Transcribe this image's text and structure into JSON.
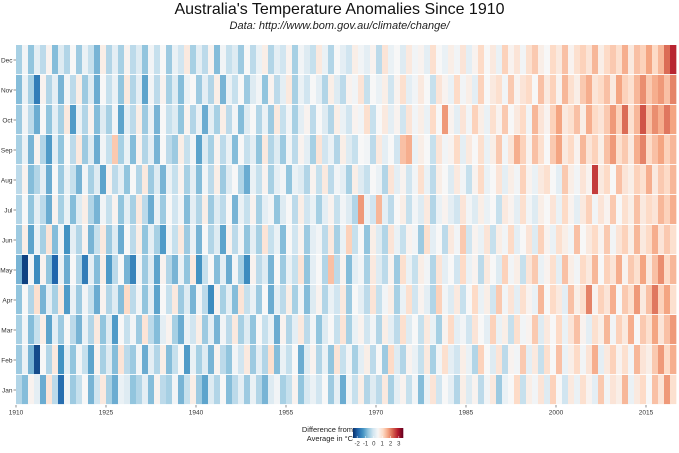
{
  "chart_data": {
    "type": "heatmap",
    "title": "Australia's Temperature Anomalies Since 1910",
    "subtitle": "Data: http://www.bom.gov.au/climate/change/",
    "xlabel": "",
    "ylabel": "",
    "x_ticks": [
      "1910",
      "1925",
      "1940",
      "1955",
      "1970",
      "1985",
      "2000",
      "2015"
    ],
    "y_categories": [
      "Jan",
      "Feb",
      "Mar",
      "Apr",
      "May",
      "Jun",
      "Jul",
      "Aug",
      "Sep",
      "Oct",
      "Nov",
      "Dec"
    ],
    "x_range": [
      1910,
      2020
    ],
    "legend": {
      "title": "Difference from Average in °C",
      "ticks": [
        "-2",
        "-1",
        "0",
        "1",
        "2",
        "3"
      ],
      "range": [
        -2.5,
        3.5
      ],
      "placement": "bottom"
    },
    "color_scale": [
      "#08306b",
      "#2166ac",
      "#4393c3",
      "#92c5de",
      "#d1e5f0",
      "#f7f7f7",
      "#fddbc7",
      "#f4a582",
      "#d6604d",
      "#b2182b",
      "#67001f"
    ],
    "grid": false,
    "values": {
      "Jan": [
        -0.4,
        -0.8,
        0.6,
        0.2,
        -1.0,
        0.9,
        -0.3,
        -1.8,
        0.4,
        -0.6,
        -0.2,
        0.5,
        -0.9,
        -0.1,
        0.8,
        -0.5,
        -1.0,
        0.3,
        0.1,
        -0.7,
        -0.4,
        0.2,
        -0.8,
        0.6,
        -0.3,
        -0.5,
        0.4,
        -0.9,
        -0.2,
        0.7,
        -0.6,
        -1.1,
        0.1,
        -0.4,
        0.5,
        -0.8,
        -0.3,
        0.2,
        -0.6,
        0.3,
        -0.4,
        -0.9,
        0.1,
        0.4,
        -0.5,
        -0.2,
        0.6,
        -0.7,
        0.0,
        0.3,
        -0.1,
        0.5,
        -0.6,
        0.2,
        -1.0,
        0.4,
        -0.2,
        0.7,
        -0.4,
        0.1,
        -0.3,
        0.8,
        -0.5,
        0.2,
        0.6,
        -0.2,
        0.4,
        -0.8,
        0.3,
        0.9,
        -0.1,
        0.5,
        0.2,
        -0.4,
        0.7,
        0.1,
        0.6,
        -0.3,
        0.4,
        0.8,
        -0.6,
        0.3,
        0.5,
        1.1,
        -0.2,
        0.7,
        0.4,
        0.9,
        0.1,
        1.2,
        0.5,
        -0.1,
        0.8,
        0.3,
        1.0,
        0.6,
        0.2,
        1.3,
        0.4,
        0.9,
        0.7,
        1.5,
        0.3,
        0.8,
        1.1,
        0.5,
        1.4,
        0.9,
        1.8,
        1.0
      ],
      "Feb": [
        -0.6,
        0.3,
        -0.9,
        -2.2,
        0.5,
        -0.4,
        0.8,
        -1.3,
        0.2,
        -0.7,
        0.4,
        -0.2,
        -1.1,
        0.6,
        -0.5,
        0.1,
        -0.8,
        0.9,
        -0.3,
        -0.6,
        0.4,
        -1.0,
        0.2,
        -0.4,
        0.7,
        -0.8,
        -0.2,
        0.5,
        -1.2,
        0.3,
        -0.5,
        0.1,
        -0.9,
        0.6,
        -0.3,
        -0.7,
        0.4,
        -0.1,
        0.8,
        -0.6,
        0.2,
        -0.4,
        1.0,
        -0.8,
        0.3,
        -0.2,
        0.5,
        -1.0,
        0.1,
        0.6,
        -0.4,
        0.3,
        -0.7,
        0.9,
        -0.2,
        0.4,
        -0.5,
        0.2,
        0.7,
        -0.3,
        0.5,
        -0.6,
        1.1,
        0.1,
        -0.4,
        0.6,
        0.3,
        -0.2,
        0.8,
        -0.5,
        0.4,
        1.0,
        0.2,
        -0.1,
        0.7,
        0.3,
        -0.4,
        1.2,
        0.5,
        0.1,
        0.9,
        -0.3,
        0.6,
        0.4,
        1.3,
        0.2,
        0.8,
        -0.2,
        1.0,
        0.5,
        1.4,
        0.3,
        0.7,
        1.1,
        0.4,
        0.9,
        1.6,
        0.2,
        0.8,
        1.2,
        0.6,
        1.0,
        0.4,
        1.5,
        0.9,
        0.7,
        1.3,
        1.8,
        1.1,
        1.6
      ],
      "Mar": [
        -0.5,
        0.4,
        -0.8,
        -0.2,
        0.7,
        -1.1,
        0.2,
        -0.6,
        0.5,
        -0.3,
        -0.9,
        0.3,
        -0.4,
        0.8,
        -0.7,
        0.1,
        -1.2,
        0.5,
        -0.2,
        0.4,
        -0.6,
        0.9,
        -0.3,
        -0.8,
        0.2,
        0.6,
        -0.5,
        -1.0,
        0.3,
        -0.1,
        0.7,
        -0.6,
        0.2,
        -0.9,
        0.4,
        -0.3,
        0.8,
        -0.5,
        0.1,
        -0.7,
        0.5,
        -0.2,
        0.3,
        -1.0,
        0.6,
        -0.4,
        0.2,
        0.8,
        -0.3,
        0.4,
        -0.7,
        0.1,
        0.5,
        -0.2,
        0.9,
        -0.5,
        0.3,
        0.6,
        -0.1,
        0.4,
        -0.4,
        0.7,
        0.2,
        -0.3,
        1.0,
        0.1,
        0.5,
        -0.2,
        0.8,
        0.3,
        -0.5,
        0.6,
        1.1,
        0.2,
        0.4,
        -0.1,
        0.9,
        0.5,
        0.2,
        1.2,
        0.3,
        0.7,
        -0.2,
        1.0,
        0.4,
        0.6,
        1.3,
        0.1,
        0.8,
        0.5,
        1.1,
        0.3,
        0.9,
        1.4,
        0.6,
        0.2,
        1.0,
        0.7,
        1.5,
        0.4,
        1.2,
        0.8,
        1.6,
        0.5,
        1.3,
        1.0,
        1.7,
        0.9,
        1.4,
        1.8
      ],
      "Apr": [
        -0.7,
        0.5,
        -0.4,
        1.0,
        -0.9,
        0.2,
        -0.5,
        0.8,
        -1.2,
        0.3,
        -0.6,
        0.4,
        -0.2,
        -1.0,
        0.6,
        -0.4,
        0.1,
        -0.8,
        1.1,
        -0.3,
        0.4,
        -0.7,
        0.2,
        -1.1,
        0.5,
        -0.2,
        0.8,
        -0.6,
        0.1,
        -0.9,
        0.4,
        -0.3,
        -1.4,
        0.6,
        -0.5,
        0.2,
        -0.8,
        0.9,
        -0.2,
        0.3,
        -0.6,
        0.5,
        -1.0,
        0.2,
        -0.3,
        0.7,
        -0.5,
        0.4,
        -0.8,
        0.1,
        0.6,
        -0.4,
        0.3,
        -0.1,
        0.8,
        -0.6,
        0.5,
        0.2,
        -0.3,
        0.9,
        -0.2,
        0.4,
        0.7,
        -0.5,
        0.3,
        1.0,
        -0.1,
        0.6,
        0.2,
        -0.4,
        1.2,
        0.4,
        0.1,
        0.8,
        -0.2,
        0.5,
        1.1,
        0.3,
        0.7,
        -0.1,
        1.3,
        0.4,
        0.9,
        0.2,
        1.0,
        0.6,
        0.3,
        1.5,
        0.5,
        1.1,
        0.8,
        0.2,
        1.4,
        0.7,
        1.0,
        2.0,
        0.6,
        1.2,
        0.9,
        1.6,
        0.5,
        1.3,
        1.0,
        1.8,
        0.8,
        1.4,
        2.1,
        1.2,
        1.7,
        1.0
      ],
      "May": [
        -0.9,
        -2.3,
        0.4,
        -1.4,
        0.6,
        -0.7,
        -1.9,
        0.3,
        -1.0,
        0.5,
        -0.4,
        -1.6,
        0.2,
        -0.8,
        0.7,
        -1.2,
        -0.3,
        0.5,
        -0.9,
        -1.5,
        0.4,
        -0.6,
        0.1,
        -1.1,
        0.6,
        -0.4,
        -0.9,
        0.3,
        -0.7,
        0.8,
        -1.3,
        -0.2,
        0.5,
        -0.8,
        0.2,
        -1.0,
        0.4,
        -0.5,
        -1.4,
        0.6,
        -0.3,
        0.1,
        -0.9,
        0.5,
        -0.6,
        0.3,
        -0.2,
        0.9,
        -0.7,
        0.2,
        0.5,
        -0.4,
        1.4,
        -0.3,
        0.6,
        -0.8,
        0.2,
        0.4,
        -0.5,
        0.8,
        0.1,
        -0.3,
        0.6,
        -0.6,
        1.0,
        0.3,
        -0.2,
        0.7,
        0.4,
        -0.4,
        0.9,
        0.2,
        0.5,
        -0.1,
        1.1,
        0.3,
        0.6,
        -0.3,
        0.8,
        0.5,
        0.1,
        1.2,
        0.4,
        0.7,
        -0.2,
        0.9,
        1.3,
        0.3,
        0.6,
        1.0,
        0.2,
        1.4,
        0.7,
        0.4,
        1.1,
        0.8,
        1.5,
        0.5,
        1.2,
        0.9,
        1.6,
        0.6,
        1.3,
        1.0,
        1.7,
        0.8,
        1.4,
        1.9,
        1.1,
        1.5
      ],
      "Jun": [
        -0.6,
        0.7,
        -1.1,
        0.3,
        -0.5,
        0.9,
        -0.8,
        0.4,
        -1.3,
        0.2,
        -0.4,
        0.6,
        -0.9,
        -0.2,
        0.8,
        -0.6,
        0.1,
        -1.0,
        0.5,
        -0.3,
        0.7,
        -0.7,
        0.2,
        -0.5,
        -1.2,
        0.4,
        -0.2,
        0.8,
        -0.6,
        0.3,
        -0.9,
        0.5,
        -0.4,
        0.1,
        -1.1,
        0.6,
        -0.3,
        0.4,
        -0.7,
        0.2,
        -0.5,
        0.9,
        -0.2,
        0.3,
        -0.8,
        0.5,
        -0.1,
        0.6,
        -0.6,
        0.2,
        0.4,
        -0.3,
        0.8,
        -0.5,
        0.3,
        1.2,
        -0.2,
        0.5,
        -0.7,
        0.7,
        0.1,
        -0.4,
        0.9,
        0.3,
        -0.2,
        0.6,
        0.4,
        -0.6,
        1.0,
        0.2,
        0.5,
        -0.3,
        0.8,
        0.4,
        1.3,
        -0.1,
        0.6,
        0.3,
        0.9,
        -0.2,
        0.7,
        0.4,
        1.1,
        0.2,
        0.5,
        0.9,
        0.1,
        1.2,
        0.6,
        0.3,
        1.0,
        0.7,
        0.4,
        1.4,
        0.5,
        0.8,
        1.1,
        0.6,
        1.3,
        0.4,
        0.9,
        1.2,
        0.7,
        1.5,
        0.8,
        1.1,
        1.6,
        0.9,
        1.3,
        1.0
      ],
      "Jul": [
        -0.4,
        0.5,
        -0.7,
        0.2,
        -0.3,
        -1.0,
        0.6,
        -0.5,
        0.3,
        -0.8,
        0.1,
        0.7,
        -0.4,
        -0.9,
        0.4,
        -0.2,
        0.6,
        -0.7,
        0.2,
        -0.5,
        0.8,
        -0.3,
        -1.0,
        0.3,
        -0.6,
        0.5,
        -0.1,
        0.4,
        -0.8,
        0.2,
        -0.4,
        0.7,
        -0.6,
        0.1,
        -0.3,
        0.5,
        -0.9,
        0.3,
        -0.2,
        0.6,
        -0.5,
        0.2,
        0.4,
        -0.7,
        0.1,
        0.5,
        -0.3,
        0.7,
        -0.1,
        0.3,
        -0.5,
        0.2,
        0.6,
        -0.2,
        0.4,
        0.1,
        -0.4,
        1.8,
        0.3,
        -0.1,
        1.5,
        0.2,
        -0.3,
        0.5,
        0.7,
        -0.2,
        0.4,
        0.1,
        0.8,
        -0.4,
        0.3,
        0.6,
        0.2,
        -0.1,
        0.9,
        0.4,
        0.1,
        0.7,
        0.3,
        0.5,
        -0.2,
        0.8,
        0.6,
        0.2,
        1.0,
        0.4,
        0.1,
        0.7,
        0.5,
        0.9,
        0.3,
        1.1,
        0.6,
        0.2,
        0.8,
        1.2,
        0.4,
        0.9,
        0.6,
        1.3,
        0.5,
        1.0,
        0.7,
        1.4,
        0.8,
        1.1,
        0.9,
        1.5,
        1.2,
        1.6
      ],
      "Aug": [
        -0.3,
        0.6,
        -0.8,
        -0.4,
        0.2,
        -1.0,
        0.5,
        -0.6,
        0.3,
        -0.2,
        -0.9,
        0.4,
        -0.5,
        0.1,
        -1.1,
        0.6,
        -0.3,
        0.2,
        -0.7,
        0.5,
        -0.4,
        0.8,
        -0.6,
        0.1,
        -0.9,
        0.3,
        -0.2,
        0.6,
        -0.5,
        0.2,
        -0.8,
        0.4,
        -0.3,
        0.7,
        -0.6,
        0.1,
        0.5,
        -0.4,
        -1.0,
        0.3,
        -0.2,
        0.6,
        -0.5,
        0.2,
        0.4,
        -0.7,
        0.3,
        0.1,
        -0.4,
        0.6,
        -0.2,
        0.8,
        -0.3,
        0.4,
        0.2,
        -0.5,
        0.7,
        0.1,
        -0.2,
        0.5,
        0.3,
        -0.4,
        0.9,
        0.2,
        0.6,
        -0.1,
        0.4,
        1.0,
        0.3,
        -0.3,
        0.7,
        0.5,
        0.1,
        0.8,
        0.4,
        -0.2,
        0.6,
        1.1,
        0.3,
        0.5,
        0.9,
        0.2,
        0.7,
        0.4,
        1.2,
        0.6,
        0.3,
        0.8,
        1.0,
        0.5,
        0.2,
        1.3,
        0.7,
        0.4,
        0.9,
        0.6,
        2.6,
        0.8,
        1.1,
        0.5,
        1.4,
        0.9,
        0.7,
        1.2,
        1.0,
        1.6,
        0.8,
        1.3,
        1.1,
        1.5
      ],
      "Sep": [
        -0.5,
        0.3,
        -0.9,
        0.6,
        -0.4,
        -1.2,
        0.2,
        -0.7,
        0.5,
        -0.3,
        0.8,
        -0.6,
        0.1,
        -1.0,
        0.4,
        -0.2,
        1.3,
        -0.5,
        0.3,
        -0.8,
        0.6,
        -0.4,
        0.2,
        -0.9,
        0.5,
        -0.3,
        -0.6,
        0.7,
        -0.2,
        0.4,
        -1.1,
        0.1,
        -0.5,
        0.6,
        -0.3,
        0.3,
        -0.8,
        0.5,
        -0.2,
        0.2,
        -0.7,
        0.8,
        -0.4,
        0.1,
        -0.6,
        0.4,
        -0.3,
        0.6,
        0.2,
        -0.5,
        0.9,
        -0.1,
        0.3,
        -0.4,
        0.7,
        0.1,
        -0.2,
        0.5,
        0.4,
        -0.3,
        0.8,
        0.2,
        0.5,
        -0.1,
        1.4,
        1.6,
        0.3,
        0.7,
        0.5,
        -0.2,
        0.9,
        0.4,
        0.6,
        1.1,
        0.2,
        0.8,
        0.5,
        1.0,
        0.3,
        0.7,
        1.3,
        0.4,
        0.9,
        1.6,
        1.2,
        0.6,
        1.4,
        1.0,
        0.5,
        1.3,
        1.7,
        0.8,
        1.1,
        0.6,
        1.5,
        0.9,
        1.2,
        0.7,
        1.4,
        1.8,
        1.0,
        1.3,
        0.8,
        1.6,
        2.0,
        1.1,
        1.4,
        1.7,
        1.2,
        1.5
      ],
      "Oct": [
        -0.6,
        0.4,
        -0.3,
        -1.0,
        0.5,
        -0.7,
        0.2,
        -0.5,
        0.8,
        -1.2,
        0.3,
        -0.4,
        0.6,
        -0.8,
        0.1,
        -0.5,
        0.4,
        -1.1,
        0.2,
        -0.3,
        0.7,
        -0.6,
        0.3,
        -0.9,
        0.5,
        -0.2,
        0.1,
        -0.7,
        0.6,
        -0.4,
        0.3,
        -1.0,
        0.2,
        -0.5,
        0.7,
        -0.3,
        0.4,
        -0.8,
        0.1,
        0.5,
        -0.4,
        0.3,
        -0.6,
        0.8,
        -0.2,
        0.4,
        -0.5,
        0.2,
        0.6,
        -0.3,
        0.5,
        0.1,
        -0.4,
        0.7,
        0.3,
        -0.1,
        0.6,
        0.4,
        1.0,
        -0.2,
        0.5,
        0.8,
        0.2,
        0.6,
        -0.1,
        0.9,
        0.4,
        0.7,
        0.3,
        1.1,
        0.5,
        1.8,
        0.6,
        0.2,
        0.9,
        0.4,
        1.2,
        0.7,
        0.3,
        1.0,
        0.6,
        1.3,
        0.5,
        0.8,
        1.1,
        0.4,
        1.5,
        0.9,
        0.6,
        1.2,
        1.7,
        0.8,
        1.0,
        1.4,
        0.7,
        1.6,
        1.1,
        0.9,
        1.3,
        1.8,
        1.2,
        2.2,
        1.0,
        1.5,
        2.4,
        1.4,
        1.9,
        1.6,
        2.1,
        1.7
      ],
      "Nov": [
        -0.8,
        0.3,
        -0.5,
        -1.6,
        0.6,
        -0.4,
        0.2,
        -0.9,
        0.4,
        -0.3,
        0.7,
        -0.6,
        0.1,
        -1.0,
        0.5,
        -0.2,
        0.3,
        -0.7,
        0.8,
        -0.4,
        0.2,
        -1.1,
        0.4,
        -0.3,
        0.6,
        -0.5,
        0.1,
        -0.8,
        0.3,
        0.5,
        -0.6,
        0.2,
        -0.4,
        0.7,
        -0.9,
        0.3,
        -0.2,
        0.5,
        -0.6,
        0.1,
        0.4,
        -0.7,
        0.6,
        -0.3,
        0.2,
        0.8,
        -0.5,
        0.3,
        -0.1,
        0.5,
        0.2,
        -0.4,
        0.7,
        0.1,
        -0.3,
        0.6,
        0.4,
        0.9,
        -0.2,
        0.5,
        0.3,
        0.7,
        -0.1,
        0.6,
        1.0,
        0.2,
        0.4,
        0.8,
        0.5,
        -0.2,
        0.9,
        0.6,
        0.3,
        1.1,
        0.4,
        0.7,
        0.2,
        1.2,
        0.5,
        0.8,
        1.0,
        0.4,
        1.3,
        0.6,
        0.9,
        1.1,
        0.5,
        1.4,
        0.8,
        1.2,
        0.6,
        1.5,
        1.0,
        0.7,
        1.3,
        1.6,
        0.9,
        1.1,
        1.4,
        0.8,
        1.7,
        1.2,
        1.0,
        1.5,
        1.9,
        1.3,
        1.6,
        1.8,
        1.4,
        2.0
      ],
      "Dec": [
        -0.5,
        0.4,
        -0.7,
        0.2,
        -0.3,
        0.6,
        -0.8,
        0.1,
        -0.4,
        0.5,
        -0.6,
        0.3,
        -0.2,
        -0.9,
        0.7,
        -0.4,
        0.2,
        -0.5,
        0.6,
        -0.3,
        0.1,
        -0.7,
        0.4,
        -0.2,
        0.5,
        -0.6,
        0.3,
        -0.1,
        0.8,
        -0.5,
        0.2,
        -0.3,
        0.6,
        -0.8,
        0.4,
        -0.2,
        0.1,
        -0.6,
        0.5,
        -0.3,
        0.3,
        0.7,
        -0.4,
        0.2,
        -0.1,
        0.6,
        -0.5,
        0.4,
        0.1,
        -0.2,
        0.8,
        0.3,
        -0.4,
        0.5,
        0.2,
        -0.1,
        0.7,
        0.4,
        0.2,
        0.6,
        -0.3,
        0.9,
        0.3,
        0.5,
        0.1,
        0.8,
        0.4,
        0.6,
        0.2,
        1.0,
        0.5,
        0.3,
        0.7,
        0.4,
        0.9,
        0.2,
        0.6,
        1.1,
        0.5,
        0.8,
        0.3,
        1.2,
        0.6,
        0.9,
        0.4,
        1.0,
        1.3,
        0.7,
        0.5,
        1.1,
        0.8,
        1.4,
        0.6,
        1.0,
        1.2,
        0.9,
        1.5,
        0.7,
        1.1,
        1.3,
        1.0,
        1.6,
        0.8,
        1.4,
        1.2,
        1.7,
        1.1,
        1.5,
        2.2,
        2.8
      ]
    }
  }
}
